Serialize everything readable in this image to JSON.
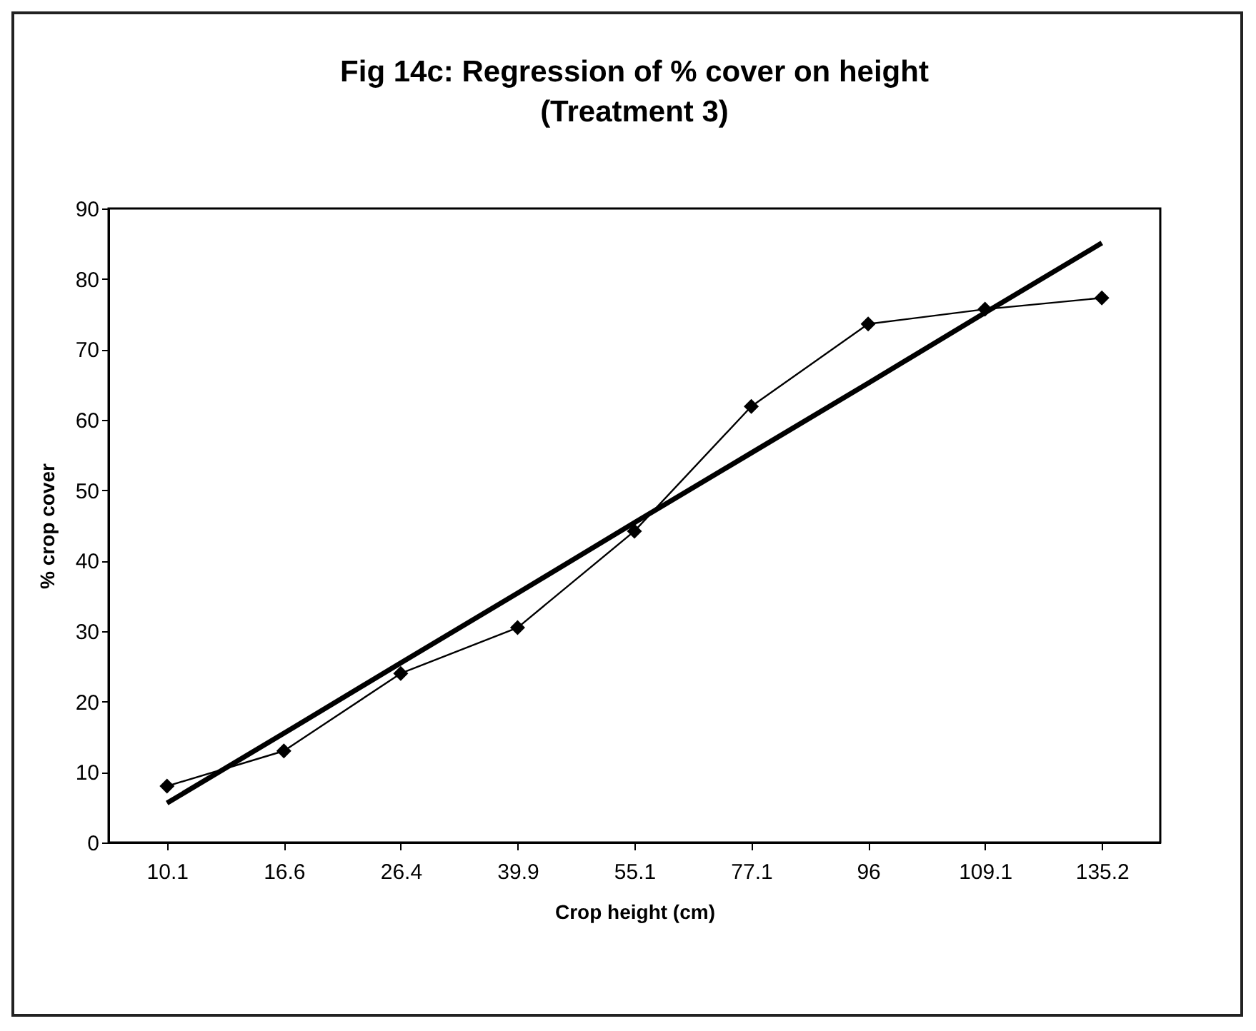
{
  "chart_data": {
    "type": "line",
    "title": "Fig 14c: Regression of % cover on height\n(Treatment 3)",
    "xlabel": "Crop height (cm)",
    "ylabel": "% crop cover",
    "categories": [
      "10.1",
      "16.6",
      "26.4",
      "39.9",
      "55.1",
      "77.1",
      "96",
      "109.1",
      "135.2"
    ],
    "series": [
      {
        "color": "#000000",
        "values": [
          8,
          13,
          24,
          30.5,
          44.2,
          61.9,
          73.6,
          75.7,
          77.3
        ]
      },
      {
        "color": "#000000",
        "marker": "none",
        "values": [
          5.6,
          15.5,
          25.5,
          35.4,
          45.4,
          55.3,
          65.2,
          75.2,
          85.1
        ]
      }
    ],
    "marker": "diamond",
    "line_style": "solid",
    "ylim": [
      0,
      90
    ],
    "yticks": [
      0,
      10,
      20,
      30,
      40,
      50,
      60,
      70,
      80,
      90
    ]
  }
}
